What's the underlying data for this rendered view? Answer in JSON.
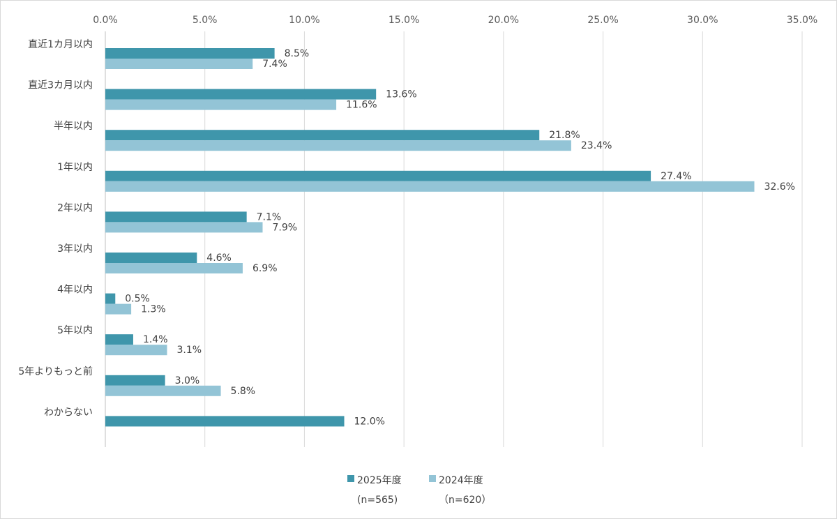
{
  "chart_data": {
    "type": "bar",
    "orientation": "horizontal",
    "categories": [
      "直近1カ月以内",
      "直近3カ月以内",
      "半年以内",
      "1年以内",
      "2年以内",
      "3年以内",
      "4年以内",
      "5年以内",
      "5年よりもっと前",
      "わからない"
    ],
    "series": [
      {
        "name": "2025年度",
        "name_sub": "(n=565)",
        "color": "#3f96ab",
        "values": [
          8.5,
          13.6,
          21.8,
          27.4,
          7.1,
          4.6,
          0.5,
          1.4,
          3.0,
          12.0
        ],
        "labels": [
          "8.5%",
          "13.6%",
          "21.8%",
          "27.4%",
          "7.1%",
          "4.6%",
          "0.5%",
          "1.4%",
          "3.0%",
          "12.0%"
        ]
      },
      {
        "name": "2024年度",
        "name_sub": "（n=620）",
        "color": "#93c4d6",
        "values": [
          7.4,
          11.6,
          23.4,
          32.6,
          7.9,
          6.9,
          1.3,
          3.1,
          5.8,
          null
        ],
        "labels": [
          "7.4%",
          "11.6%",
          "23.4%",
          "32.6%",
          "7.9%",
          "6.9%",
          "1.3%",
          "3.1%",
          "5.8%",
          ""
        ]
      }
    ],
    "x_ticks": [
      "0.0%",
      "5.0%",
      "10.0%",
      "15.0%",
      "20.0%",
      "25.0%",
      "30.0%",
      "35.0%"
    ],
    "xlim": [
      0,
      35
    ],
    "x_axis_position": "top",
    "grid": true,
    "legend_position": "bottom"
  }
}
